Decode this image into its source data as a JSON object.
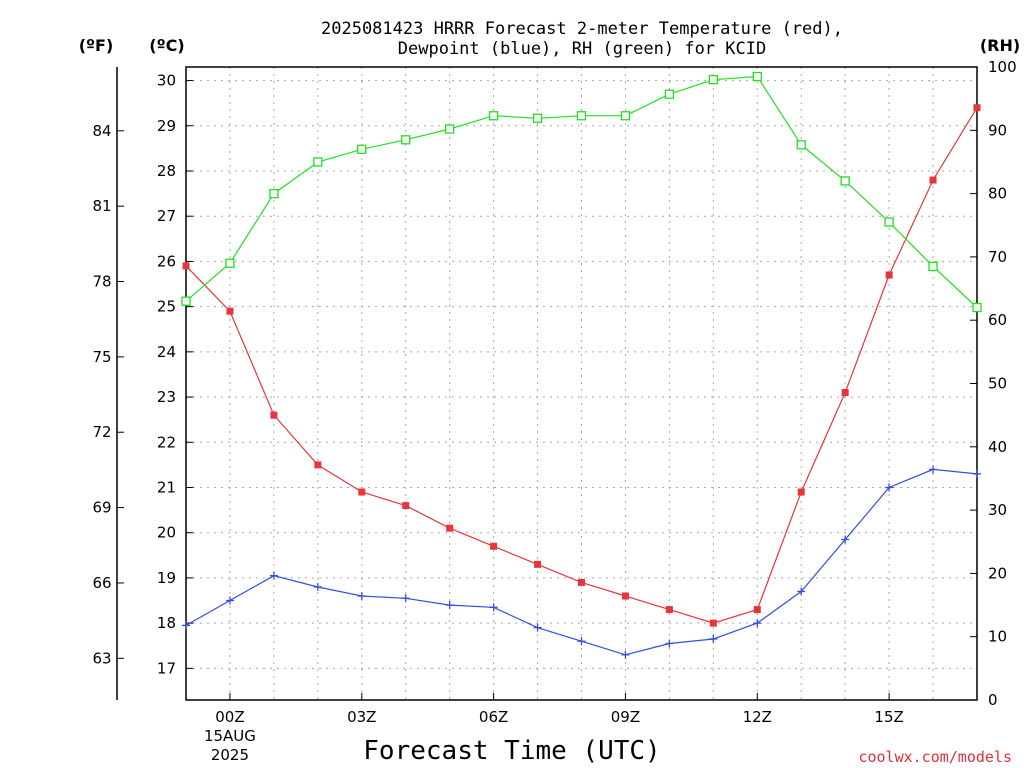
{
  "chart_data": {
    "type": "line",
    "title_line1": "2025081423 HRRR Forecast 2-meter Temperature (red),",
    "title_line2": "Dewpoint (blue), RH (green) for KCID",
    "xlabel": "Forecast Time (UTC)",
    "unit_f": "(ºF)",
    "unit_c": "(ºC)",
    "unit_rh": "(RH)",
    "credit": "coolwx.com/models",
    "x_hours": [
      -1,
      0,
      1,
      2,
      3,
      4,
      5,
      6,
      7,
      8,
      9,
      10,
      11,
      12,
      13,
      14,
      15,
      16,
      17
    ],
    "xlim": [
      -1,
      17
    ],
    "x_ticks": [
      {
        "hour": 0,
        "label": "00Z",
        "sub1": "15AUG",
        "sub2": "2025"
      },
      {
        "hour": 3,
        "label": "03Z",
        "sub1": "",
        "sub2": ""
      },
      {
        "hour": 6,
        "label": "06Z",
        "sub1": "",
        "sub2": ""
      },
      {
        "hour": 9,
        "label": "09Z",
        "sub1": "",
        "sub2": ""
      },
      {
        "hour": 12,
        "label": "12Z",
        "sub1": "",
        "sub2": ""
      },
      {
        "hour": 15,
        "label": "15Z",
        "sub1": "",
        "sub2": ""
      }
    ],
    "ylim_c": [
      16.3,
      30.3
    ],
    "y_ticks_c": [
      17,
      18,
      19,
      20,
      21,
      22,
      23,
      24,
      25,
      26,
      27,
      28,
      29,
      30
    ],
    "y_ticks_f": [
      63,
      66,
      69,
      72,
      75,
      78,
      81,
      84
    ],
    "ylim_rh": [
      0,
      100
    ],
    "y_ticks_rh": [
      0,
      10,
      20,
      30,
      40,
      50,
      60,
      70,
      80,
      90,
      100
    ],
    "grid": true,
    "series": [
      {
        "key": "temperature",
        "color": "#e8353c",
        "marker": "filled-square",
        "axis": "c",
        "values": [
          25.9,
          24.9,
          22.6,
          21.5,
          20.9,
          20.6,
          20.1,
          19.7,
          19.3,
          18.9,
          18.6,
          18.3,
          18.0,
          18.3,
          20.9,
          23.1,
          25.7,
          27.8,
          29.4
        ]
      },
      {
        "key": "dewpoint",
        "color": "#2f4fe0",
        "marker": "plus",
        "axis": "c",
        "values": [
          17.95,
          18.5,
          19.05,
          18.8,
          18.6,
          18.55,
          18.4,
          18.35,
          17.9,
          17.6,
          17.3,
          17.55,
          17.65,
          18.0,
          18.7,
          19.85,
          21.0,
          21.4,
          21.3
        ]
      },
      {
        "key": "rh",
        "color": "#1fe01f",
        "marker": "open-square",
        "axis": "rh",
        "values": [
          63,
          69,
          80,
          85,
          87,
          88.5,
          90.2,
          92.3,
          91.9,
          92.3,
          92.3,
          95.7,
          98,
          98.5,
          87.7,
          82,
          75.5,
          68.5,
          62
        ]
      }
    ]
  }
}
